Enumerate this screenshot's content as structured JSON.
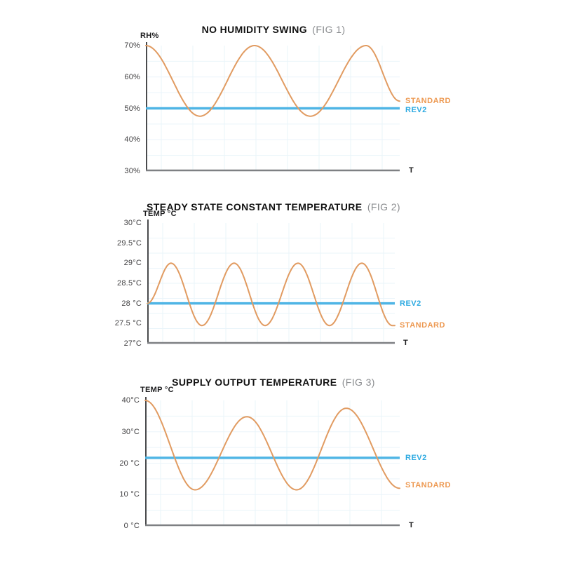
{
  "colors": {
    "standard_line": "#E19B61",
    "standard_label": "#ED9850",
    "rev2_line": "#4FB5E5",
    "rev2_label": "#2BA9E1",
    "grid": "#EAF4FA",
    "y_axis": "#4A4B4D",
    "x_axis": "#7E8083",
    "tick_text": "#414042",
    "title_text": "#121212",
    "fig_text": "#8A8C8F"
  },
  "chart_data": [
    {
      "type": "line",
      "title": "NO HUMIDITY SWING",
      "fig_label": "(FIG 1)",
      "y_axis_label": "RH%",
      "x_axis_label": "T",
      "ylim": [
        30,
        70
      ],
      "grid": true,
      "y_ticks": [
        {
          "label": "70%",
          "value": 70
        },
        {
          "label": "60%",
          "value": 60
        },
        {
          "label": "50%",
          "value": 50
        },
        {
          "label": "40%",
          "value": 40
        },
        {
          "label": "30%",
          "value": 30
        }
      ],
      "series": [
        {
          "name": "STANDARD",
          "kind": "wave",
          "points": [
            [
              0,
              70
            ],
            [
              0.213,
              47.5
            ],
            [
              0.428,
              70
            ],
            [
              0.648,
              47.5
            ],
            [
              0.868,
              70
            ],
            [
              1,
              52.3
            ]
          ],
          "label": {
            "text": "STANDARD",
            "at": 52.3
          }
        },
        {
          "name": "REV2",
          "kind": "constant",
          "value": 50,
          "label": {
            "text": "REV2",
            "at": 49.4
          }
        }
      ]
    },
    {
      "type": "line",
      "title": "STEADY STATE CONSTANT TEMPERATURE",
      "fig_label": "(FIG 2)",
      "y_axis_label": "TEMP °C",
      "x_axis_label": "T",
      "ylim": [
        27,
        30
      ],
      "grid": true,
      "y_ticks": [
        {
          "label": "30°C",
          "value": 30
        },
        {
          "label": "29.5°C",
          "value": 29.5
        },
        {
          "label": "29°C",
          "value": 29
        },
        {
          "label": "28.5°C",
          "value": 28.5
        },
        {
          "label": "28 °C",
          "value": 28
        },
        {
          "label": "27.5 °C",
          "value": 27.5
        },
        {
          "label": "27°C",
          "value": 27
        }
      ],
      "series": [
        {
          "name": "STANDARD",
          "kind": "wave",
          "points": [
            [
              0,
              28
            ],
            [
              0.096,
              29
            ],
            [
              0.221,
              27.45
            ],
            [
              0.351,
              29
            ],
            [
              0.476,
              27.45
            ],
            [
              0.609,
              29
            ],
            [
              0.736,
              27.45
            ],
            [
              0.867,
              29
            ],
            [
              0.99,
              27.45
            ]
          ],
          "label": {
            "text": "STANDARD",
            "at": 27.45
          }
        },
        {
          "name": "REV2",
          "kind": "constant",
          "value": 28,
          "label": {
            "text": "REV2",
            "at": 28
          }
        }
      ]
    },
    {
      "type": "line",
      "title": "SUPPLY OUTPUT TEMPERATURE",
      "fig_label": "(FIG 3)",
      "y_axis_label": "TEMP °C",
      "x_axis_label": "T",
      "ylim": [
        0,
        40
      ],
      "grid": true,
      "y_ticks": [
        {
          "label": "40°C",
          "value": 40
        },
        {
          "label": "30°C",
          "value": 30
        },
        {
          "label": "20 °C",
          "value": 20
        },
        {
          "label": "10 °C",
          "value": 10
        },
        {
          "label": "0 °C",
          "value": 0
        }
      ],
      "series": [
        {
          "name": "STANDARD",
          "kind": "wave",
          "points": [
            [
              0,
              40
            ],
            [
              0.196,
              11.5
            ],
            [
              0.4,
              34.8
            ],
            [
              0.595,
              11.5
            ],
            [
              0.79,
              37.5
            ],
            [
              1,
              12
            ]
          ],
          "label": {
            "text": "STANDARD",
            "at": 13
          }
        },
        {
          "name": "REV2",
          "kind": "constant",
          "value": 21.7,
          "label": {
            "text": "REV2",
            "at": 21.7
          }
        }
      ]
    }
  ]
}
